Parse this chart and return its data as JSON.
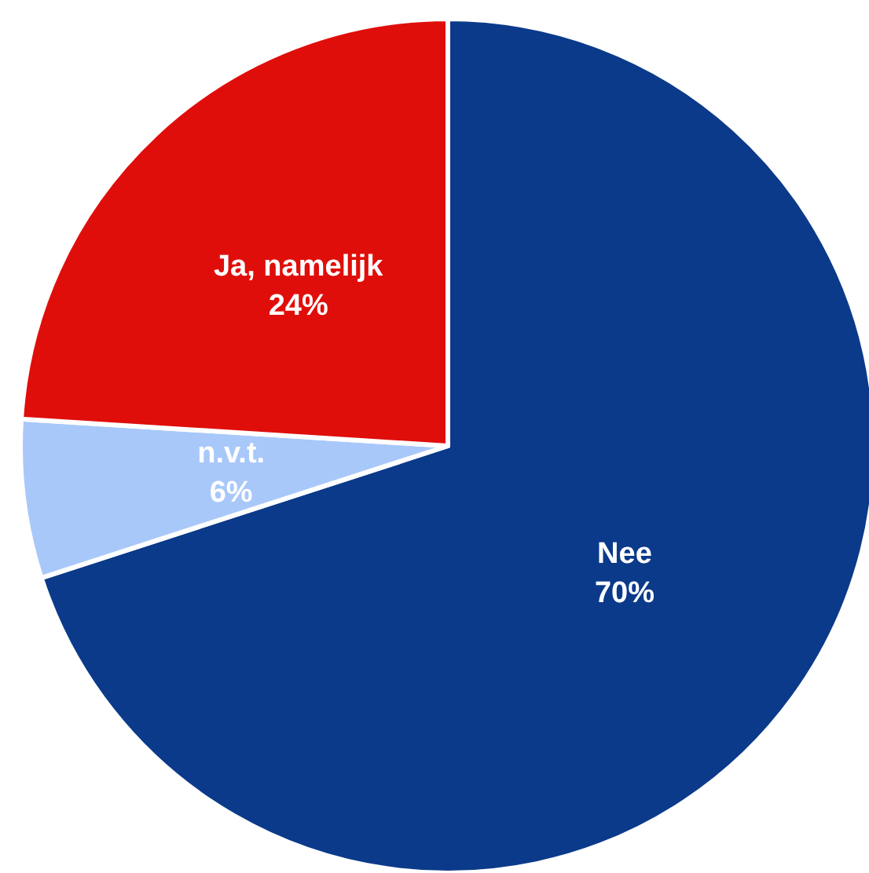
{
  "chart_data": {
    "type": "pie",
    "categories": [
      "Nee",
      "n.v.t.",
      "Ja, namelijk"
    ],
    "values": [
      70,
      6,
      24
    ],
    "colors": [
      "#0b3a8a",
      "#a9c8fa",
      "#e00e0a"
    ],
    "value_labels": [
      "70%",
      "6%",
      "24%"
    ]
  }
}
